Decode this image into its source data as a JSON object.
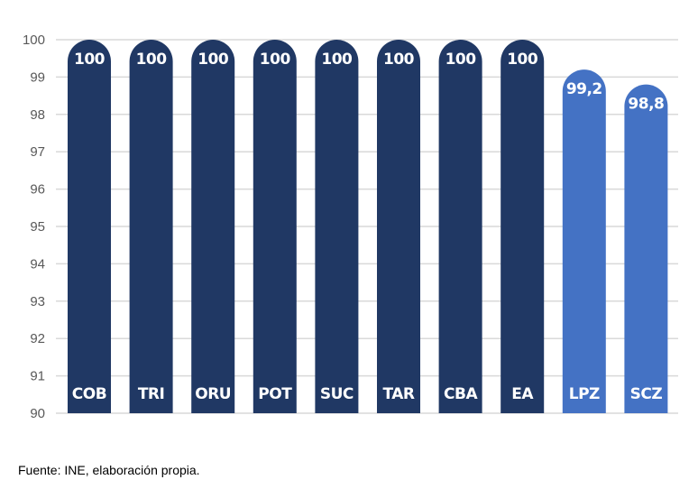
{
  "chart_data": {
    "type": "bar",
    "title": "",
    "xlabel": "",
    "ylabel": "",
    "ylim": [
      90,
      100
    ],
    "yticks": [
      90,
      91,
      92,
      93,
      94,
      95,
      96,
      97,
      98,
      99,
      100
    ],
    "grid": true,
    "categories": [
      "COB",
      "TRI",
      "ORU",
      "POT",
      "SUC",
      "TAR",
      "CBA",
      "EA",
      "LPZ",
      "SCZ"
    ],
    "values": [
      100,
      100,
      100,
      100,
      100,
      100,
      100,
      100,
      99.2,
      98.8
    ],
    "value_labels": [
      "100",
      "100",
      "100",
      "100",
      "100",
      "100",
      "100",
      "100",
      "99,2",
      "98,8"
    ],
    "colors": [
      "#203864",
      "#203864",
      "#203864",
      "#203864",
      "#203864",
      "#203864",
      "#203864",
      "#203864",
      "#4472C4",
      "#4472C4"
    ]
  },
  "source": "Fuente: INE, elaboración propia."
}
